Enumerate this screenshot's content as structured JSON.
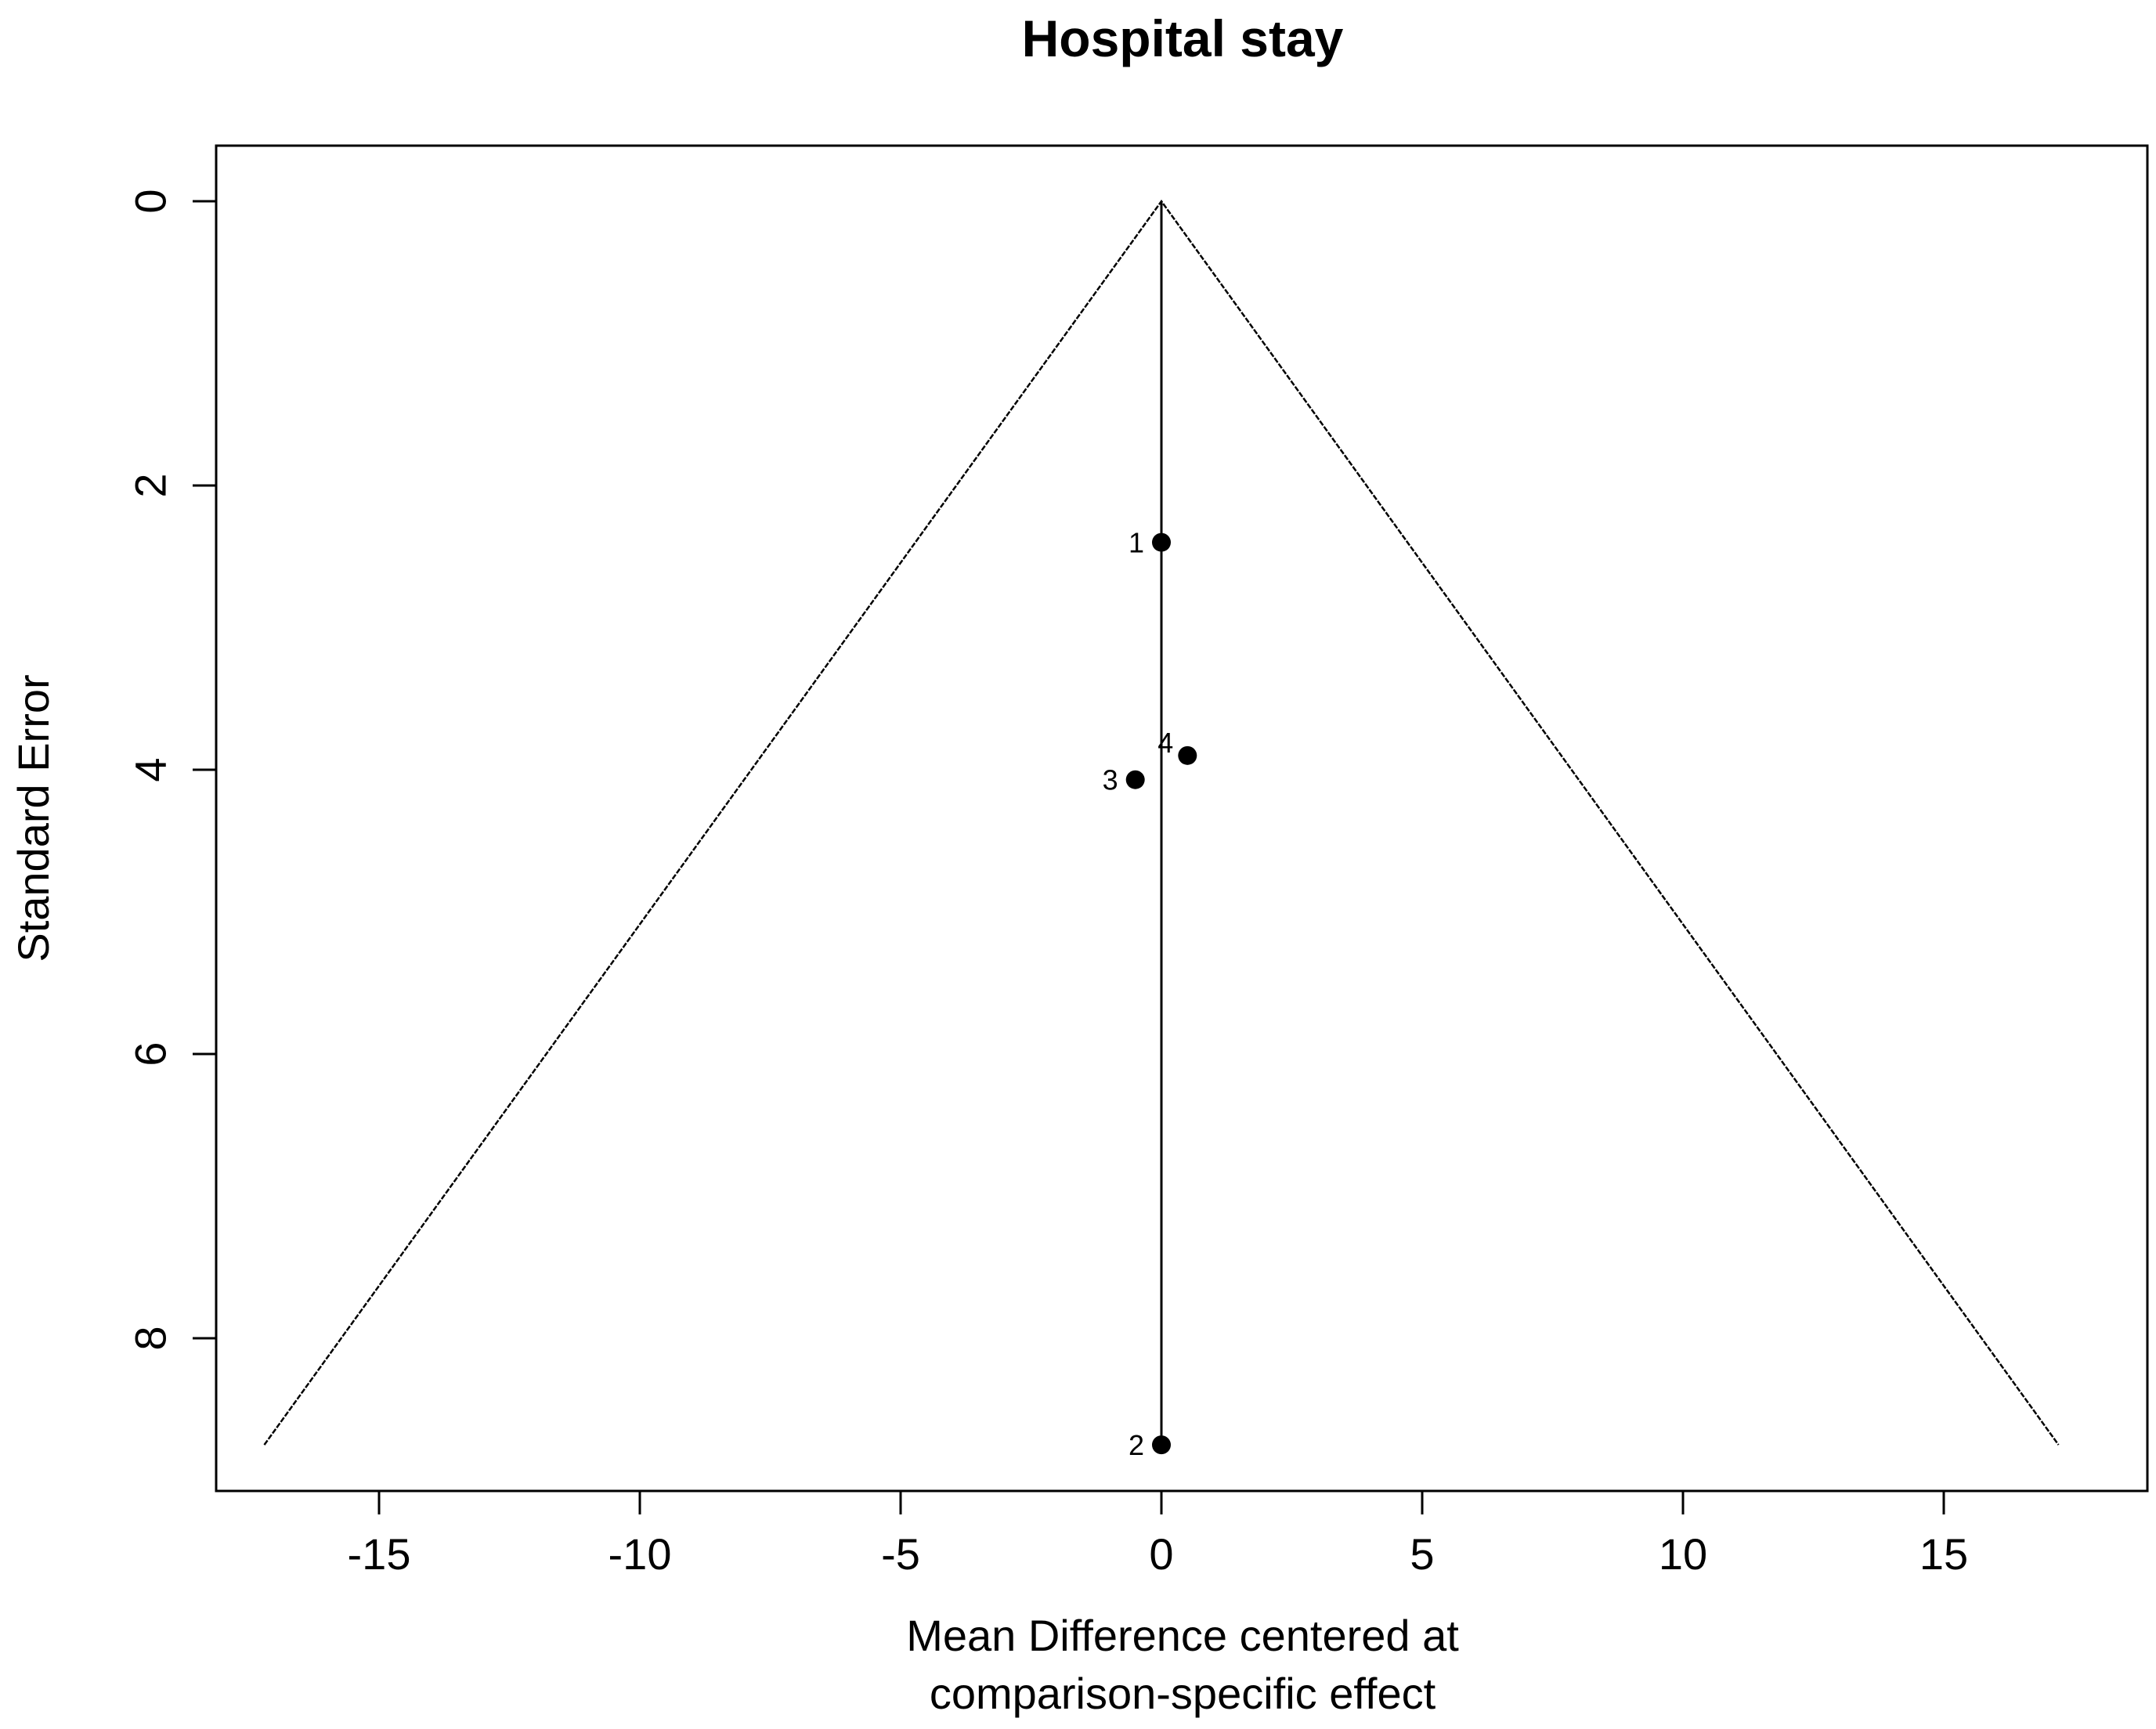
{
  "chart_data": {
    "type": "scatter",
    "title": "Hospital stay",
    "xlabel_lines": [
      "Mean Difference centered at",
      "comparison-specific effect"
    ],
    "ylabel": "Standard Error",
    "xlim": [
      -18.5,
      18.5
    ],
    "ylim": [
      0,
      9.1
    ],
    "y_inverted": true,
    "grid": false,
    "x_ticks": [
      -15,
      -10,
      -5,
      0,
      5,
      10,
      15
    ],
    "x_tick_labels": [
      "-15",
      "-10",
      "-5",
      "0",
      "5",
      "10",
      "15"
    ],
    "y_ticks": [
      0,
      2,
      4,
      6,
      8
    ],
    "y_tick_labels": [
      "0",
      "2",
      "4",
      "6",
      "8"
    ],
    "funnel": {
      "apex": [
        0,
        0
      ],
      "left_base": [
        -17.2,
        8.75
      ],
      "right_base": [
        17.2,
        8.75
      ]
    },
    "reference_line": {
      "x": 0,
      "y_from": 0,
      "y_to": 8.75
    },
    "points": [
      {
        "label": "1",
        "x": 0.0,
        "y": 2.4,
        "label_side": "left"
      },
      {
        "label": "2",
        "x": 0.0,
        "y": 8.75,
        "label_side": "left"
      },
      {
        "label": "3",
        "x": -0.5,
        "y": 4.07,
        "label_side": "left"
      },
      {
        "label": "4",
        "x": 0.5,
        "y": 3.9,
        "label_side": "upper-left"
      }
    ],
    "colors": {
      "ink": "#000000",
      "background": "#ffffff"
    }
  }
}
